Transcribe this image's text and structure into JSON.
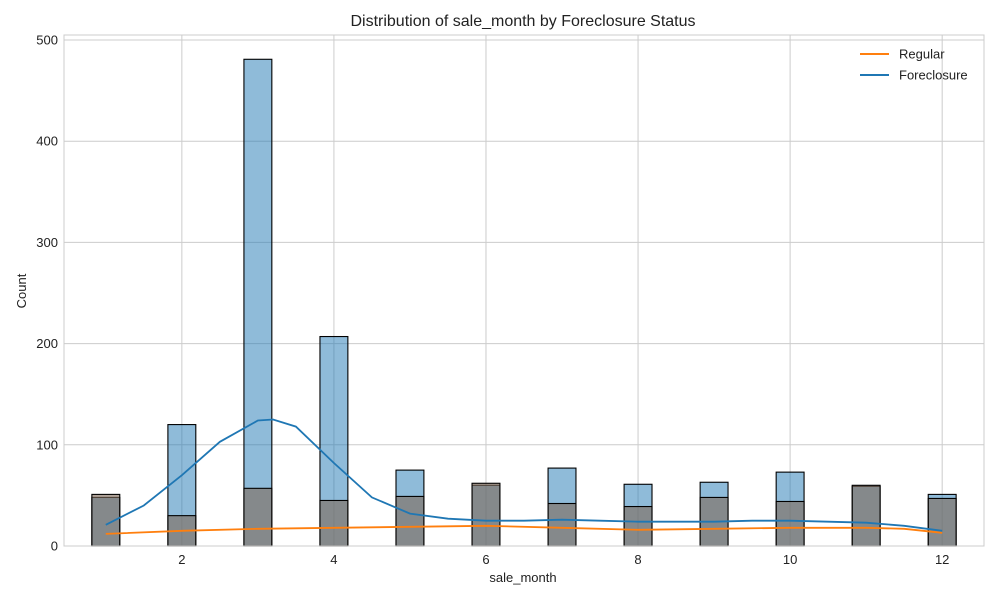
{
  "chart_data": {
    "type": "histogram",
    "title": "Distribution of sale_month by Foreclosure Status",
    "xlabel": "sale_month",
    "ylabel": "Count",
    "xlim": [
      0.45,
      12.55
    ],
    "ylim": [
      0,
      505
    ],
    "xticks": [
      2,
      4,
      6,
      8,
      10,
      12
    ],
    "yticks": [
      0,
      100,
      200,
      300,
      400,
      500
    ],
    "grid": true,
    "legend_position": "top-right",
    "bin_width": 0.367,
    "series": [
      {
        "name": "Foreclosure",
        "color": "#1f77b4",
        "bins": [
          {
            "x": 1,
            "count": 48
          },
          {
            "x": 2,
            "count": 120
          },
          {
            "x": 3,
            "count": 481
          },
          {
            "x": 4,
            "count": 207
          },
          {
            "x": 5,
            "count": 75
          },
          {
            "x": 6,
            "count": 60
          },
          {
            "x": 7,
            "count": 77
          },
          {
            "x": 8,
            "count": 61
          },
          {
            "x": 9,
            "count": 63
          },
          {
            "x": 10,
            "count": 73
          },
          {
            "x": 11,
            "count": 59
          },
          {
            "x": 12,
            "count": 51
          }
        ],
        "kde": [
          [
            1,
            21
          ],
          [
            1.5,
            40
          ],
          [
            2,
            70
          ],
          [
            2.5,
            103
          ],
          [
            3,
            124
          ],
          [
            3.2,
            125
          ],
          [
            3.5,
            118
          ],
          [
            4,
            82
          ],
          [
            4.5,
            48
          ],
          [
            5,
            32
          ],
          [
            5.5,
            27
          ],
          [
            6,
            25
          ],
          [
            6.5,
            25
          ],
          [
            7,
            26
          ],
          [
            7.5,
            25
          ],
          [
            8,
            24
          ],
          [
            8.5,
            24
          ],
          [
            9,
            24
          ],
          [
            9.5,
            25
          ],
          [
            10,
            25
          ],
          [
            10.5,
            24
          ],
          [
            11,
            23
          ],
          [
            11.5,
            20
          ],
          [
            12,
            15
          ]
        ]
      },
      {
        "name": "Regular",
        "color": "#ff7f0e",
        "bins": [
          {
            "x": 1,
            "count": 51
          },
          {
            "x": 2,
            "count": 30
          },
          {
            "x": 3,
            "count": 57
          },
          {
            "x": 4,
            "count": 45
          },
          {
            "x": 5,
            "count": 49
          },
          {
            "x": 6,
            "count": 62
          },
          {
            "x": 7,
            "count": 42
          },
          {
            "x": 8,
            "count": 39
          },
          {
            "x": 9,
            "count": 48
          },
          {
            "x": 10,
            "count": 44
          },
          {
            "x": 11,
            "count": 60
          },
          {
            "x": 12,
            "count": 47
          }
        ],
        "kde": [
          [
            1,
            12
          ],
          [
            2,
            15
          ],
          [
            3,
            17
          ],
          [
            4,
            18
          ],
          [
            5,
            19
          ],
          [
            6,
            20
          ],
          [
            7,
            18
          ],
          [
            8,
            16
          ],
          [
            9,
            17
          ],
          [
            10,
            18
          ],
          [
            11,
            18
          ],
          [
            11.5,
            17
          ],
          [
            12,
            13
          ]
        ]
      }
    ],
    "legend": [
      {
        "label": "Regular",
        "color": "#ff7f0e"
      },
      {
        "label": "Foreclosure",
        "color": "#1f77b4"
      }
    ]
  }
}
